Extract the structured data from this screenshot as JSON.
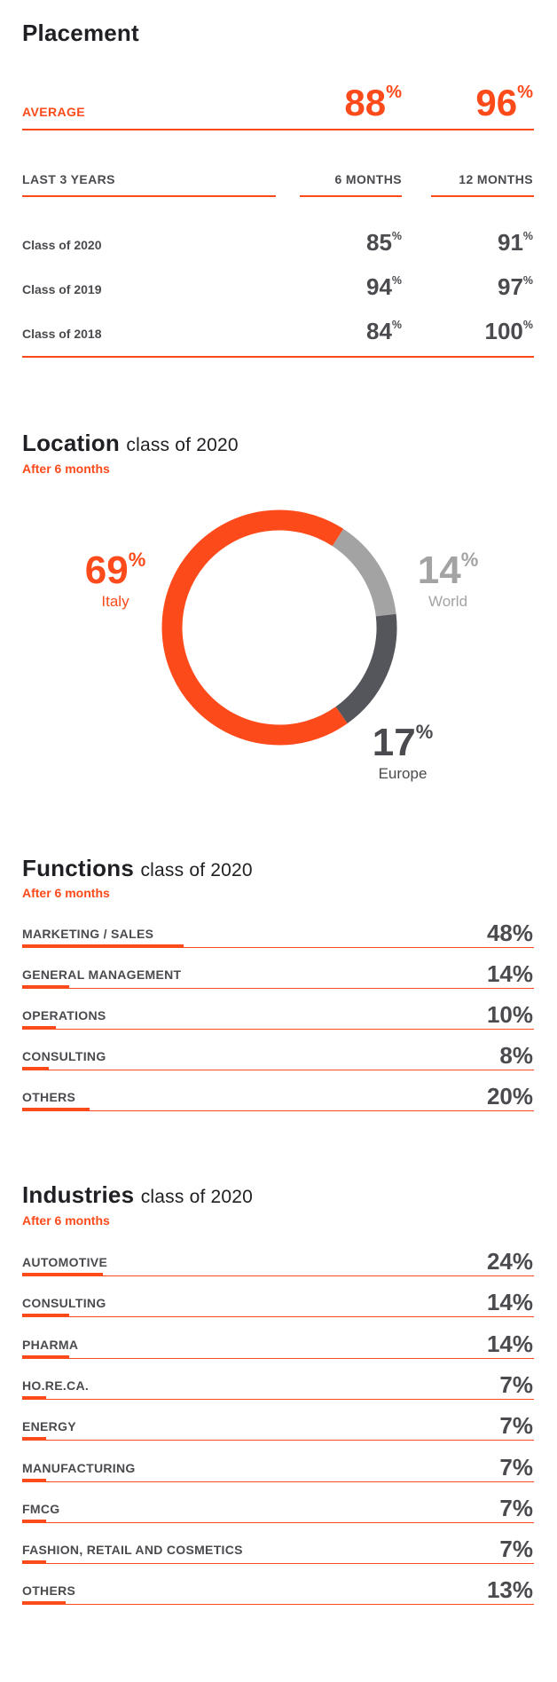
{
  "placement": {
    "title": "Placement",
    "average_label": "AVERAGE",
    "average_6m": "88",
    "average_12m": "96",
    "percent_sign": "%",
    "last_label": "LAST 3 YEARS",
    "col_6": "6 MONTHS",
    "col_12": "12 MONTHS",
    "rows": [
      {
        "label": "Class of 2020",
        "m6": "85",
        "m12": "91"
      },
      {
        "label": "Class of 2019",
        "m6": "94",
        "m12": "97"
      },
      {
        "label": "Class of 2018",
        "m6": "84",
        "m12": "100"
      }
    ]
  },
  "location": {
    "title": "Location",
    "subtitle": "class of 2020",
    "after": "After 6 months"
  },
  "functions": {
    "title": "Functions",
    "subtitle": "class of 2020",
    "after": "After 6 months"
  },
  "industries": {
    "title": "Industries",
    "subtitle": "class of 2020",
    "after": "After 6 months"
  },
  "colors": {
    "accent": "#fc4a1a",
    "world": "#a3a3a3",
    "europe": "#55565b",
    "text": "#4a4a4f"
  },
  "chart_data": [
    {
      "type": "pie",
      "categories": [
        "Italy",
        "World",
        "Europe"
      ],
      "values": [
        69,
        14,
        17
      ],
      "colors": [
        "#fc4a1a",
        "#a3a3a3",
        "#55565b"
      ]
    },
    {
      "type": "bar",
      "categories": [
        "MARKETING / SALES",
        "GENERAL MANAGEMENT",
        "OPERATIONS",
        "CONSULTING",
        "OTHERS"
      ],
      "values": [
        48,
        14,
        10,
        8,
        20
      ],
      "value_labels": [
        "48%",
        "14%",
        "10%",
        "8%",
        "20%"
      ]
    },
    {
      "type": "bar",
      "categories": [
        "AUTOMOTIVE",
        "CONSULTING",
        "PHARMA",
        "HO.RE.CA.",
        "ENERGY",
        "MANUFACTURING",
        "FMCG",
        "FASHION, RETAIL AND COSMETICS",
        "OTHERS"
      ],
      "values": [
        24,
        14,
        14,
        7,
        7,
        7,
        7,
        7,
        13
      ],
      "value_labels": [
        "24%",
        "14%",
        "14%",
        "7%",
        "7%",
        "7%",
        "7%",
        "7%",
        "13%"
      ]
    }
  ]
}
